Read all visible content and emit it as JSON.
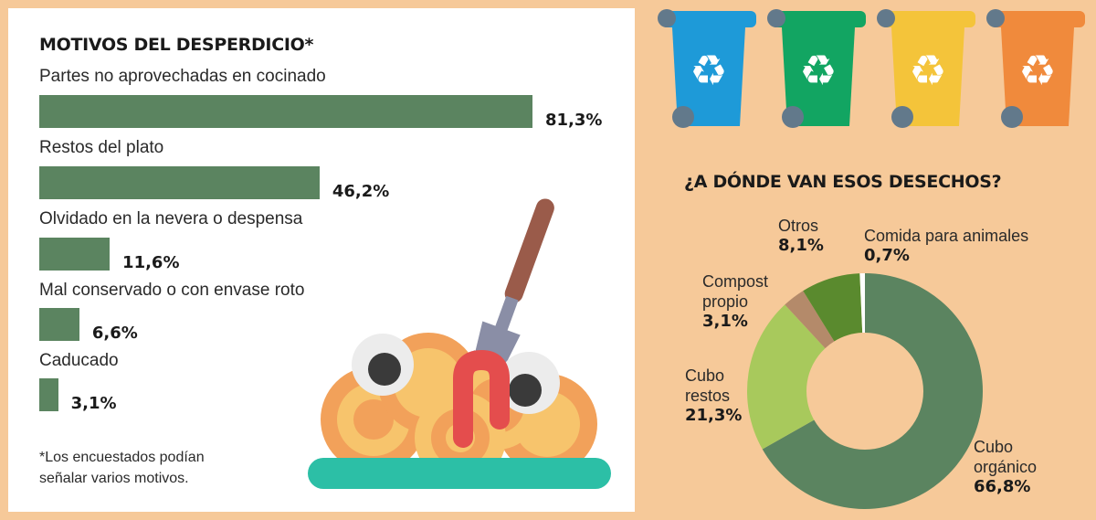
{
  "chart_data": [
    {
      "type": "bar",
      "title": "MOTIVOS DEL DESPERDICIO*",
      "categories": [
        "Partes no aprovechadas en cocinado",
        "Restos del plato",
        "Olvidado en la nevera o despensa",
        "Mal conservado o con envase roto",
        "Caducado"
      ],
      "values": [
        81.3,
        46.2,
        11.6,
        6.6,
        3.1
      ],
      "value_labels": [
        "81,3%",
        "46,2%",
        "11,6%",
        "6,6%",
        "3,1%"
      ],
      "color": "#5b8460",
      "note": "*Los encuestados podían señalar varios motivos."
    },
    {
      "type": "pie",
      "title": "¿A DÓNDE VAN ESOS DESECHOS?",
      "slices": [
        {
          "label": "Cubo orgánico",
          "value": 66.8,
          "value_label": "66,8%",
          "color": "#5b8460"
        },
        {
          "label": "Cubo restos",
          "value": 21.3,
          "value_label": "21,3%",
          "color": "#a8c95c"
        },
        {
          "label": "Compost propio",
          "value": 3.1,
          "value_label": "3,1%",
          "color": "#b48a6a"
        },
        {
          "label": "Otros",
          "value": 8.1,
          "value_label": "8,1%",
          "color": "#5a8a2e"
        },
        {
          "label": "Comida para animales",
          "value": 0.7,
          "value_label": "0,7%",
          "color": "#ffffff"
        }
      ]
    }
  ],
  "bins": [
    {
      "color": "#1e9ad8",
      "icon": "recycle-icon"
    },
    {
      "color": "#12a562",
      "icon": "recycle-icon"
    },
    {
      "color": "#f4c43a",
      "icon": "recycle-icon"
    },
    {
      "color": "#f08a3c",
      "icon": "recycle-icon"
    }
  ]
}
